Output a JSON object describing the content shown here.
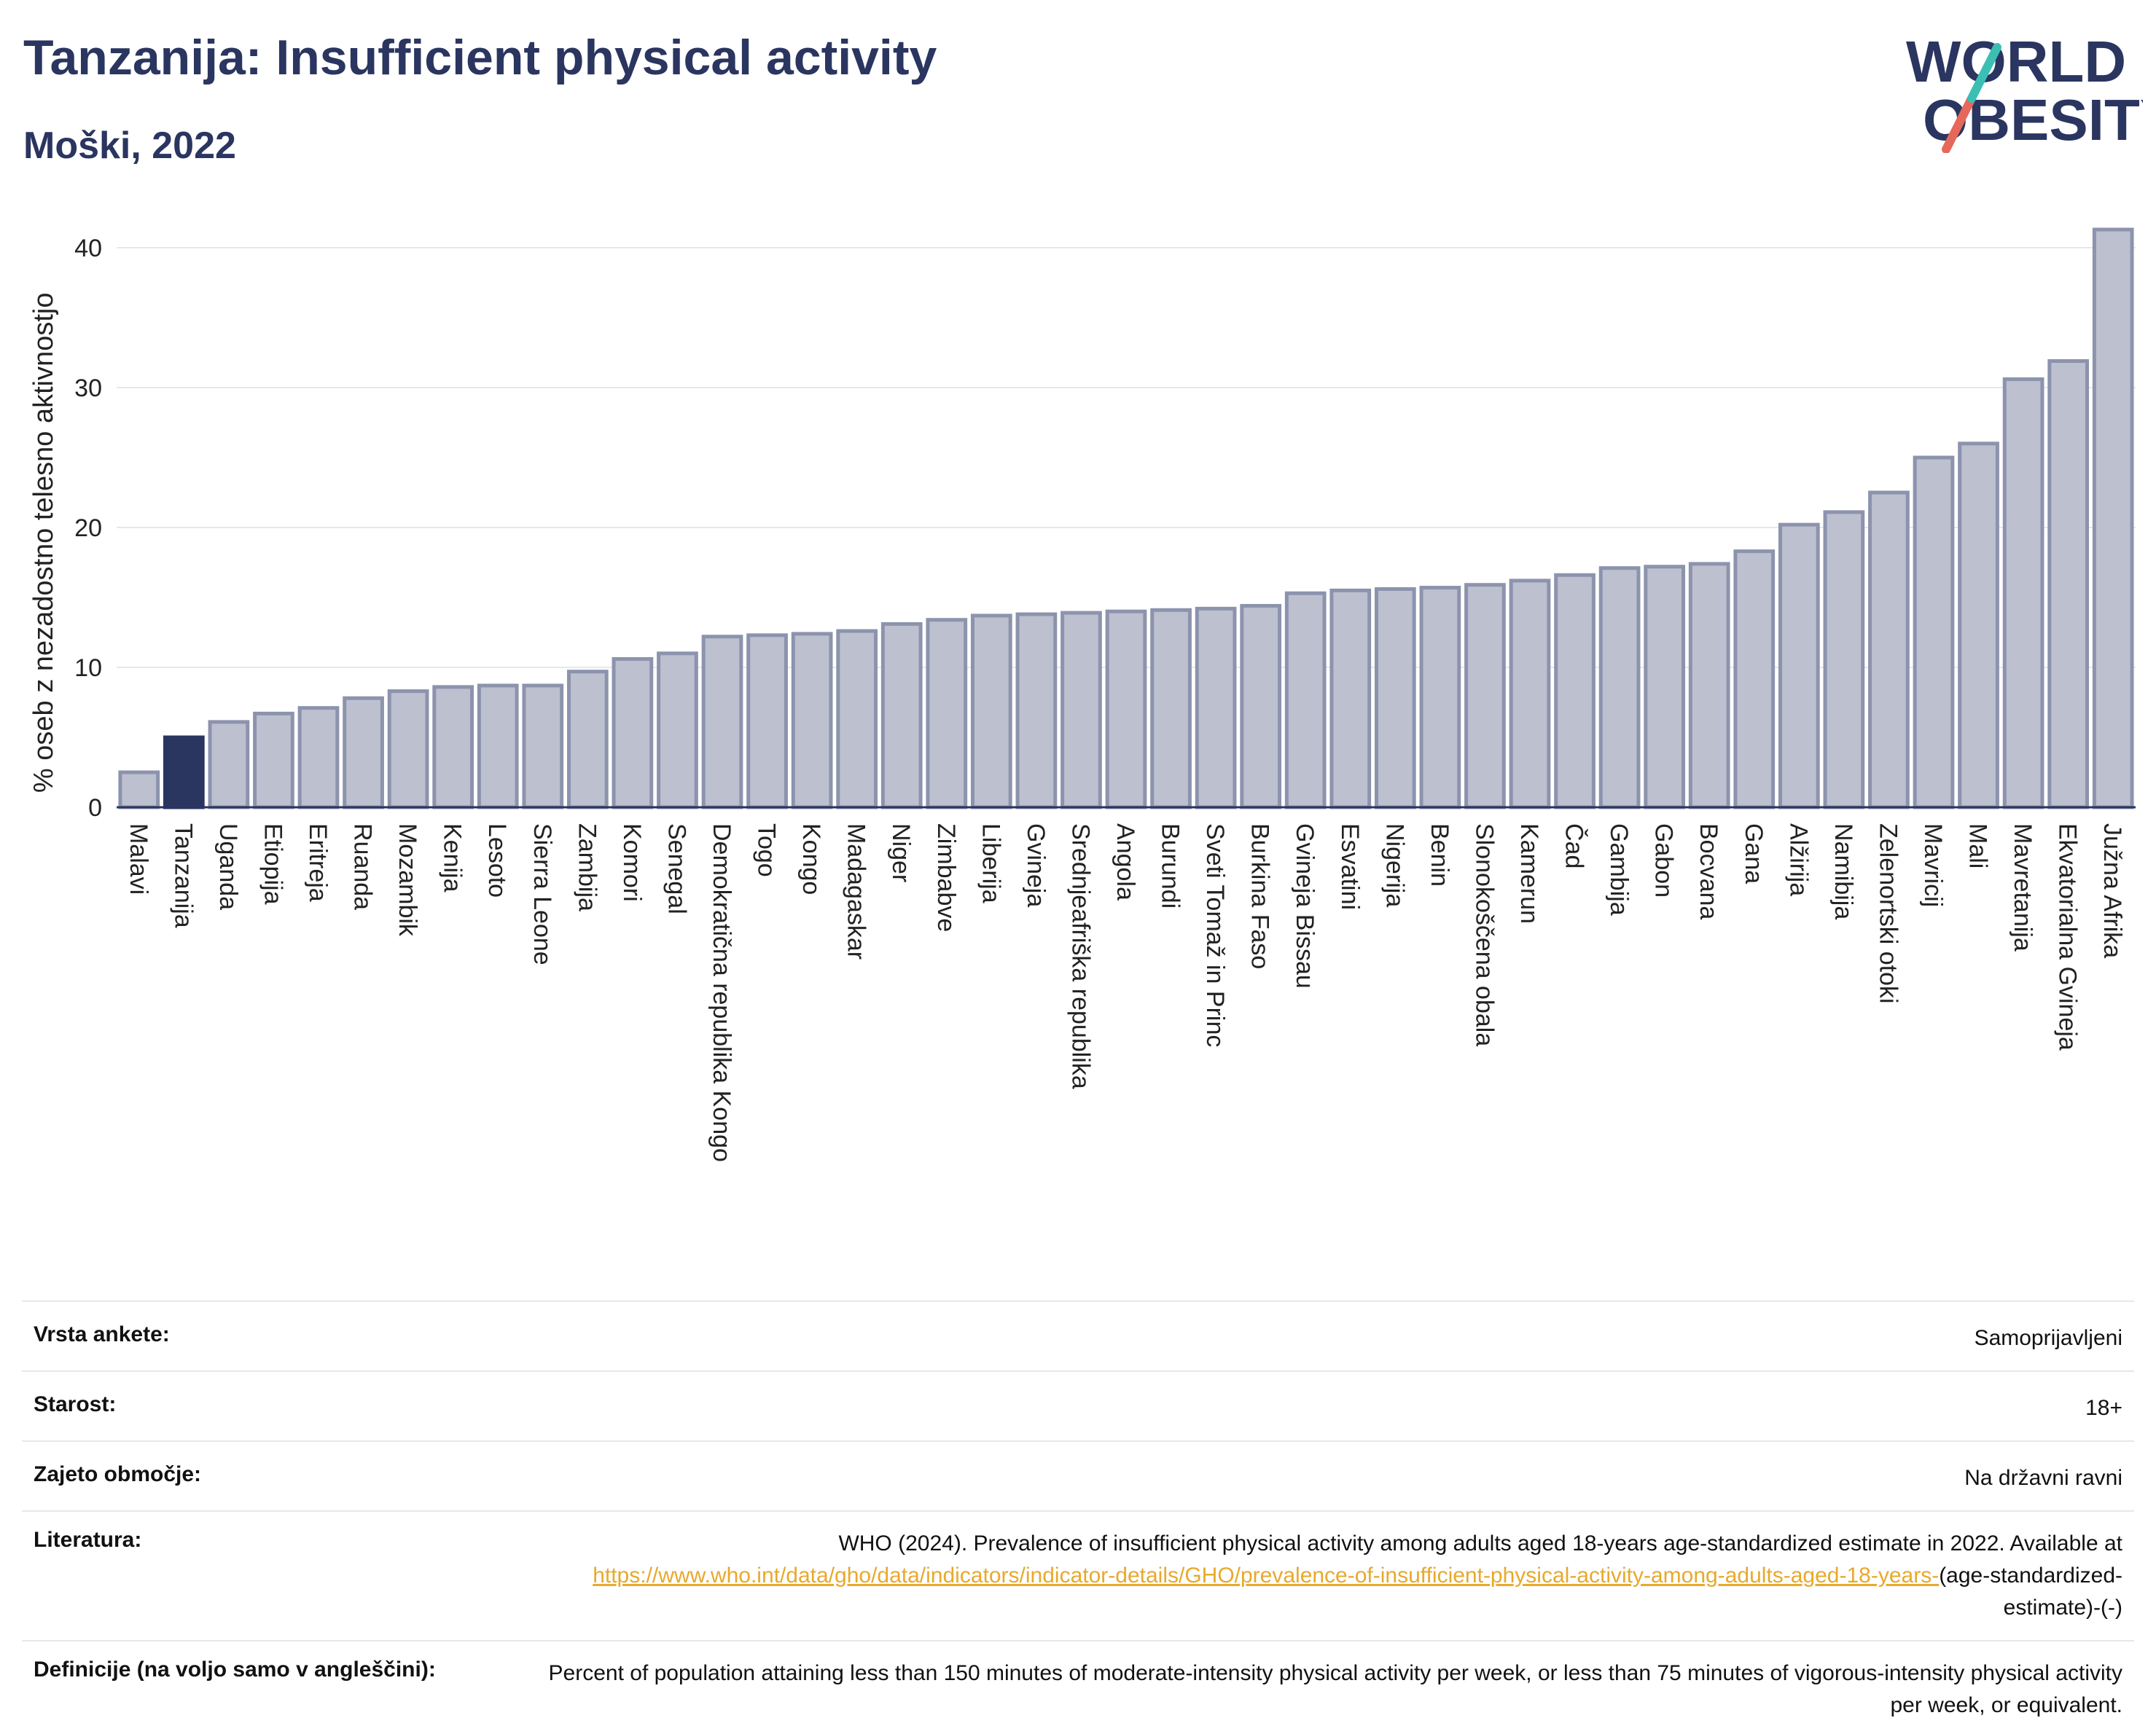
{
  "title": "Tanzanija: Insufficient physical activity",
  "subtitle": "Moški, 2022",
  "logo": {
    "line1": "WORLD",
    "line2": "OBESITY"
  },
  "colors": {
    "bar": "#bcc0cf",
    "bar_border": "#8c93ad",
    "highlight": "#2a3560",
    "axis": "#2a3560",
    "grid": "#e6e8ee",
    "logo_teal": "#3bbfb3",
    "logo_coral": "#e5685a",
    "link": "#e8a92b"
  },
  "chart_data": {
    "type": "bar",
    "title": "Tanzanija: Insufficient physical activity",
    "subtitle": "Moški, 2022",
    "xlabel": "",
    "ylabel": "% oseb z nezadostno telesno aktivnostjo",
    "ylim": [
      0,
      42
    ],
    "yticks": [
      0,
      10,
      20,
      30,
      40
    ],
    "grid": true,
    "highlight": "Tanzanija",
    "categories": [
      "Malavi",
      "Tanzanija",
      "Uganda",
      "Etiopija",
      "Eritreja",
      "Ruanda",
      "Mozambik",
      "Kenija",
      "Lesoto",
      "Sierra Leone",
      "Zambija",
      "Komori",
      "Senegal",
      "Demokratična republika Kongo",
      "Togo",
      "Kongo",
      "Madagaskar",
      "Niger",
      "Zimbabve",
      "Liberija",
      "Gvineja",
      "Srednjeafriška republika",
      "Angola",
      "Burundi",
      "Sveti Tomaž in Princ",
      "Burkina Faso",
      "Gvineja Bissau",
      "Esvatini",
      "Nigerija",
      "Benin",
      "Slonokoščena obala",
      "Kamerun",
      "Čad",
      "Gambija",
      "Gabon",
      "Bocvana",
      "Gana",
      "Alžirija",
      "Namibija",
      "Zelenortski otoki",
      "Mavricij",
      "Mali",
      "Mavretanija",
      "Ekvatorialna Gvineja",
      "Južna Afrika"
    ],
    "values": [
      2.5,
      5.0,
      6.1,
      6.7,
      7.1,
      7.8,
      8.3,
      8.6,
      8.7,
      8.7,
      9.7,
      10.6,
      11.0,
      12.2,
      12.3,
      12.4,
      12.6,
      13.1,
      13.4,
      13.7,
      13.8,
      13.9,
      14.0,
      14.1,
      14.2,
      14.4,
      15.3,
      15.5,
      15.6,
      15.7,
      15.9,
      16.2,
      16.6,
      17.1,
      17.2,
      17.4,
      18.3,
      20.2,
      21.1,
      22.5,
      25.0,
      26.0,
      30.6,
      31.9,
      41.3
    ]
  },
  "info": {
    "survey_type_label": "Vrsta ankete:",
    "survey_type_value": "Samoprijavljeni",
    "age_label": "Starost:",
    "age_value": "18+",
    "coverage_label": "Zajeto območje:",
    "coverage_value": "Na državni ravni",
    "literature_label": "Literatura:",
    "literature_text": "WHO (2024). Prevalence of insufficient physical activity among adults aged 18-years age-standardized estimate in 2022. Available at",
    "literature_link": "https://www.who.int/data/gho/data/indicators/indicator-details/GHO/prevalence-of-insufficient-physical-activity-among-adults-aged-18-years-",
    "literature_suffix": "(age-standardized-estimate)-(-)",
    "definitions_label": "Definicije (na voljo samo v angleščini):",
    "definitions_value": "Percent of population attaining less than 150 minutes of moderate-intensity physical activity per week, or less than 75 minutes of vigorous-intensity physical activity per week, or equivalent."
  }
}
